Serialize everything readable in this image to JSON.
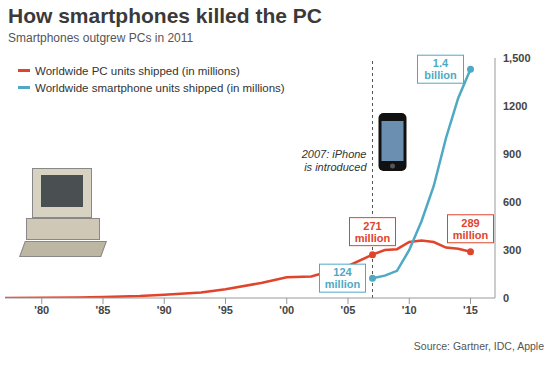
{
  "chart_data": {
    "type": "line",
    "title": "How smartphones killed the PC",
    "subtitle": "Smartphones outgrew PCs in 2011",
    "source": "Source: Gartner, IDC, Apple",
    "x": [
      1977,
      1980,
      1983,
      1985,
      1988,
      1990,
      1993,
      1995,
      1998,
      2000,
      2002,
      2005,
      2007,
      2008,
      2009,
      2010,
      2011,
      2012,
      2013,
      2014,
      2015
    ],
    "series": [
      {
        "name": "Worldwide PC units shipped (in millions)",
        "color": "#e0452c",
        "values": [
          0,
          1,
          3,
          6,
          12,
          20,
          35,
          55,
          95,
          130,
          135,
          200,
          271,
          300,
          305,
          350,
          360,
          350,
          315,
          308,
          289
        ],
        "value_labels": [
          null,
          null,
          null,
          null,
          null,
          null,
          null,
          null,
          null,
          null,
          null,
          null,
          "271 million",
          null,
          null,
          null,
          null,
          null,
          null,
          null,
          "289 million"
        ]
      },
      {
        "name": "Worldwide smartphone units shipped (in millions)",
        "color": "#4fa9c4",
        "values": [
          null,
          null,
          null,
          null,
          null,
          null,
          null,
          null,
          null,
          null,
          null,
          null,
          124,
          140,
          170,
          300,
          480,
          700,
          1000,
          1250,
          1430
        ],
        "value_labels": [
          null,
          null,
          null,
          null,
          null,
          null,
          null,
          null,
          null,
          null,
          null,
          null,
          "124 million",
          null,
          null,
          null,
          null,
          null,
          null,
          null,
          "1.4 billion"
        ]
      }
    ],
    "xlim": [
      1977,
      2017
    ],
    "xticks": [
      {
        "value": 1980,
        "label": "'80"
      },
      {
        "value": 1985,
        "label": "'85"
      },
      {
        "value": 1990,
        "label": "'90"
      },
      {
        "value": 1995,
        "label": "'95"
      },
      {
        "value": 2000,
        "label": "'00"
      },
      {
        "value": 2005,
        "label": "'05"
      },
      {
        "value": 2010,
        "label": "'10"
      },
      {
        "value": 2015,
        "label": "'15"
      }
    ],
    "ylim": [
      0,
      1500
    ],
    "yticks": [
      0,
      300,
      600,
      900,
      1200,
      {
        "value": 1500,
        "label": "1,500"
      }
    ],
    "grid": false,
    "legend": "upper left",
    "data_labels": true,
    "annotations": [
      {
        "text": [
          "2007: iPhone",
          "is introduced"
        ],
        "x": 2007,
        "line_style": "dashed"
      }
    ]
  }
}
